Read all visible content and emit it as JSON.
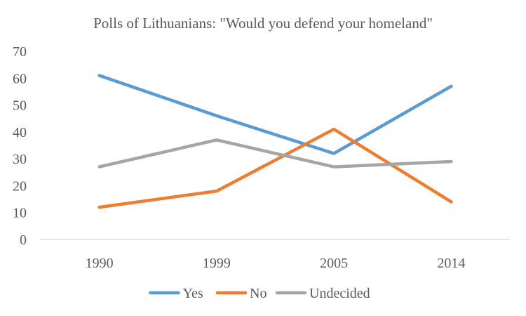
{
  "chart_data": {
    "type": "line",
    "title": "Polls of Lithuanians: \"Would you defend your homeland\"",
    "xlabel": "",
    "ylabel": "",
    "categories": [
      "1990",
      "1999",
      "2005",
      "2014"
    ],
    "series": [
      {
        "name": "Yes",
        "values": [
          61,
          46,
          32,
          57
        ],
        "color": "#5B9BD5"
      },
      {
        "name": "No",
        "values": [
          12,
          18,
          41,
          14
        ],
        "color": "#ED7D31"
      },
      {
        "name": "Undecided",
        "values": [
          27,
          37,
          27,
          29
        ],
        "color": "#A5A5A5"
      }
    ],
    "ylim": [
      0,
      70
    ],
    "yticks": [
      0,
      10,
      20,
      30,
      40,
      50,
      60,
      70
    ],
    "grid": false,
    "legend": "bottom"
  }
}
